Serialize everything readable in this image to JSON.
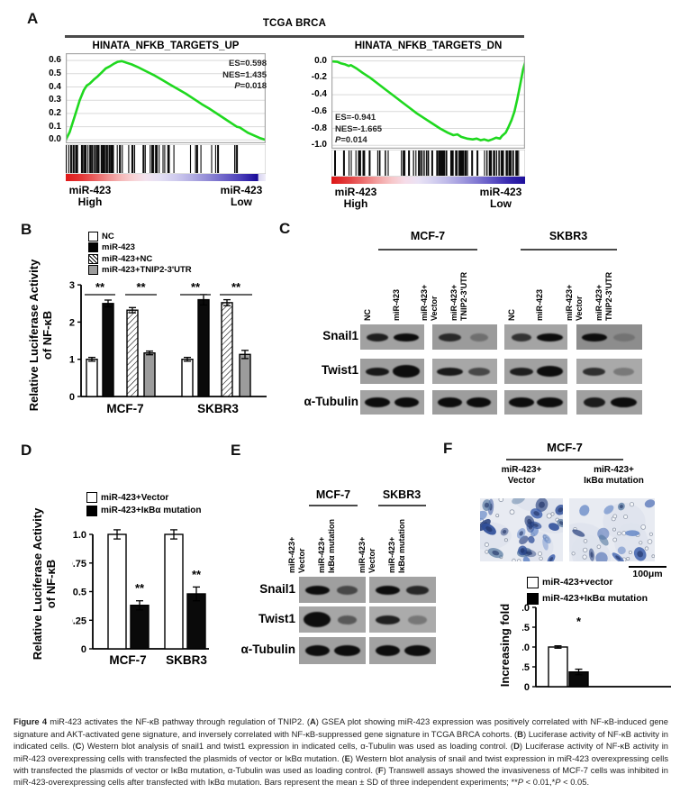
{
  "panels": {
    "a": {
      "label": "A",
      "title": "TCGA BRCA"
    },
    "b": {
      "label": "B"
    },
    "c": {
      "label": "C",
      "cell_lines": [
        "MCF-7",
        "SKBR3"
      ],
      "lane_labels": [
        [
          "NC"
        ],
        [
          "miR-423"
        ],
        [
          "miR-423+",
          "Vector"
        ],
        [
          "miR-423+",
          "TNIP2-3'UTR"
        ]
      ],
      "rows": [
        "Snail1",
        "Twist1",
        "α-Tubulin"
      ],
      "bands": [
        [
          [
            [
              0.8,
              0.88
            ],
            [
              0.95,
              1
            ]
          ],
          [
            [
              0.82,
              0.8
            ],
            [
              0.65,
              0.3
            ]
          ],
          [
            [
              0.72,
              0.75
            ],
            [
              0.95,
              1
            ]
          ],
          [
            [
              0.95,
              1
            ],
            [
              0.8,
              0.2
            ]
          ]
        ],
        [
          [
            [
              0.85,
              0.92
            ],
            [
              1,
              1,
              1.5
            ]
          ],
          [
            [
              0.95,
              0.92
            ],
            [
              0.8,
              0.62
            ]
          ],
          [
            [
              0.85,
              0.88
            ],
            [
              0.95,
              1,
              1.3
            ]
          ],
          [
            [
              0.82,
              0.78
            ],
            [
              0.78,
              0.3
            ]
          ]
        ],
        [
          [
            [
              0.95,
              1
            ],
            [
              0.9,
              1
            ]
          ],
          [
            [
              0.9,
              1
            ],
            [
              0.9,
              1
            ]
          ],
          [
            [
              0.95,
              1
            ],
            [
              0.95,
              1
            ]
          ],
          [
            [
              0.8,
              0.9
            ],
            [
              0.95,
              1
            ]
          ]
        ]
      ],
      "bg": [
        [
          "#a1a1a1",
          "#9b9b9b",
          "#a4a4a4",
          "#8d8d8d"
        ],
        [
          "#9e9e9e",
          "#a7a7a7",
          "#a1a1a1",
          "#a9a9a9"
        ],
        [
          "#a3a3a3",
          "#9d9d9d",
          "#a1a1a1",
          "#a0a0a0"
        ]
      ]
    },
    "d": {
      "label": "D"
    },
    "e": {
      "label": "E",
      "cell_lines": [
        "MCF-7",
        "SKBR3"
      ],
      "lane_labels": [
        [
          "miR-423+",
          "Vector"
        ],
        [
          "miR-423+",
          "IκBα mutation"
        ]
      ],
      "rows": [
        "Snail1",
        "Twist1",
        "α-Tubulin"
      ],
      "bands": [
        [
          [
            [
              0.9,
              1
            ],
            [
              0.78,
              0.6
            ]
          ],
          [
            [
              0.9,
              1
            ],
            [
              0.85,
              0.82
            ]
          ]
        ],
        [
          [
            [
              1,
              1,
              1.7
            ],
            [
              0.72,
              0.5
            ]
          ],
          [
            [
              0.9,
              0.88
            ],
            [
              0.72,
              0.32
            ]
          ]
        ],
        [
          [
            [
              0.9,
              1
            ],
            [
              0.95,
              1
            ]
          ],
          [
            [
              0.9,
              1
            ],
            [
              0.95,
              1
            ]
          ]
        ]
      ],
      "bg": [
        [
          "#9f9f9f",
          "#a3a3a3"
        ],
        [
          "#a6a6a6",
          "#ababab"
        ],
        [
          "#a0a0a0",
          "#a2a2a2"
        ]
      ]
    },
    "f": {
      "label": "F",
      "title": "MCF-7",
      "col_labels": [
        [
          "miR-423+",
          "Vector"
        ],
        [
          "miR-423+",
          "IκBα mutation"
        ]
      ],
      "scale_bar": "100μm",
      "cells": {
        "counts": [
          27,
          13
        ],
        "pores": [
          18,
          24
        ]
      }
    }
  },
  "chart_data": [
    {
      "id": "gsea_up",
      "type": "line",
      "title": "HINATA_NFKB_TARGETS_UP",
      "stats": [
        "ES=0.598",
        "NES=1.435",
        "P=0.018"
      ],
      "ytick_labels": [
        "0.6",
        "0.5",
        "0.4",
        "0.3",
        "0.2",
        "0.1",
        "0.0"
      ],
      "ytick_vals": [
        0.6,
        0.5,
        0.4,
        0.3,
        0.2,
        0.1,
        0.0
      ],
      "line_color": "#1fd81f",
      "corner_labels": {
        "left": [
          "miR-423",
          "High"
        ],
        "right": [
          "miR-423",
          "Low"
        ]
      },
      "curve": [
        [
          0,
          0
        ],
        [
          0.02,
          0.06
        ],
        [
          0.045,
          0.18
        ],
        [
          0.07,
          0.3
        ],
        [
          0.09,
          0.375
        ],
        [
          0.105,
          0.41
        ],
        [
          0.12,
          0.425
        ],
        [
          0.14,
          0.455
        ],
        [
          0.16,
          0.48
        ],
        [
          0.18,
          0.51
        ],
        [
          0.2,
          0.54
        ],
        [
          0.22,
          0.555
        ],
        [
          0.24,
          0.575
        ],
        [
          0.26,
          0.59
        ],
        [
          0.28,
          0.595
        ],
        [
          0.3,
          0.585
        ],
        [
          0.33,
          0.57
        ],
        [
          0.36,
          0.55
        ],
        [
          0.4,
          0.52
        ],
        [
          0.44,
          0.49
        ],
        [
          0.48,
          0.455
        ],
        [
          0.52,
          0.42
        ],
        [
          0.56,
          0.385
        ],
        [
          0.6,
          0.35
        ],
        [
          0.64,
          0.31
        ],
        [
          0.68,
          0.27
        ],
        [
          0.72,
          0.235
        ],
        [
          0.76,
          0.195
        ],
        [
          0.8,
          0.155
        ],
        [
          0.83,
          0.125
        ],
        [
          0.855,
          0.1
        ],
        [
          0.87,
          0.095
        ],
        [
          0.89,
          0.075
        ],
        [
          0.91,
          0.055
        ],
        [
          0.94,
          0.035
        ],
        [
          0.97,
          0.015
        ],
        [
          1,
          0
        ]
      ],
      "barcode_segments": [
        {
          "a": 0,
          "b": 0.32,
          "n": 55
        },
        {
          "a": 0.32,
          "b": 0.5,
          "n": 14
        },
        {
          "a": 0.5,
          "b": 0.75,
          "n": 9
        },
        {
          "a": 0.75,
          "b": 0.98,
          "n": 5
        }
      ],
      "gradient": [
        "#e01818 0%",
        "#e43838 8%",
        "#ea6464 15%",
        "#f09494 22%",
        "#f5baba 28%",
        "#f8d4d6 34%",
        "#f3e3ef 40%",
        "#e4e0f4 47%",
        "#cfcbee 55%",
        "#b3aee3 63%",
        "#928bd6 71%",
        "#6f65c9 79%",
        "#4d41ba 87%",
        "#2b1da6 93%",
        "#170a94 96%",
        "#d9d5f1 96.5%",
        "#efedf9 100%"
      ]
    },
    {
      "id": "gsea_dn",
      "type": "line",
      "title": "HINATA_NFKB_TARGETS_DN",
      "stats": [
        "ES=-0.941",
        "NES=-1.665",
        "P=0.014"
      ],
      "ytick_labels": [
        "0.0",
        "-0.2",
        "-0.4",
        "-0.6",
        "-0.8",
        "-1.0"
      ],
      "ytick_vals": [
        0.0,
        -0.2,
        -0.4,
        -0.6,
        -0.8,
        -1.0
      ],
      "line_color": "#1fd81f",
      "corner_labels": {
        "left": [
          "miR-423",
          "High"
        ],
        "right": [
          "miR-423",
          "Low"
        ]
      },
      "curve": [
        [
          0,
          -0.005
        ],
        [
          0.03,
          -0.01
        ],
        [
          0.05,
          -0.03
        ],
        [
          0.07,
          -0.04
        ],
        [
          0.09,
          -0.06
        ],
        [
          0.1,
          -0.05
        ],
        [
          0.13,
          -0.09
        ],
        [
          0.16,
          -0.14
        ],
        [
          0.2,
          -0.2
        ],
        [
          0.24,
          -0.27
        ],
        [
          0.28,
          -0.34
        ],
        [
          0.32,
          -0.41
        ],
        [
          0.36,
          -0.48
        ],
        [
          0.4,
          -0.55
        ],
        [
          0.44,
          -0.62
        ],
        [
          0.48,
          -0.68
        ],
        [
          0.52,
          -0.74
        ],
        [
          0.56,
          -0.8
        ],
        [
          0.6,
          -0.85
        ],
        [
          0.63,
          -0.88
        ],
        [
          0.65,
          -0.87
        ],
        [
          0.67,
          -0.9
        ],
        [
          0.7,
          -0.92
        ],
        [
          0.73,
          -0.93
        ],
        [
          0.75,
          -0.92
        ],
        [
          0.77,
          -0.94
        ],
        [
          0.79,
          -0.93
        ],
        [
          0.81,
          -0.945
        ],
        [
          0.83,
          -0.93
        ],
        [
          0.85,
          -0.91
        ],
        [
          0.87,
          -0.92
        ],
        [
          0.88,
          -0.89
        ],
        [
          0.9,
          -0.85
        ],
        [
          0.915,
          -0.78
        ],
        [
          0.93,
          -0.7
        ],
        [
          0.945,
          -0.6
        ],
        [
          0.96,
          -0.45
        ],
        [
          0.975,
          -0.28
        ],
        [
          0.99,
          -0.1
        ],
        [
          1,
          -0.02
        ]
      ],
      "barcode_segments": [
        {
          "a": 0,
          "b": 0.2,
          "n": 12
        },
        {
          "a": 0.2,
          "b": 0.45,
          "n": 14
        },
        {
          "a": 0.45,
          "b": 0.62,
          "n": 25
        },
        {
          "a": 0.62,
          "b": 0.99,
          "n": 45
        }
      ],
      "gradient": [
        "#dd1515 0%",
        "#e34040 9%",
        "#ec7272 17%",
        "#f2a2a2 24%",
        "#f7c6c8 31%",
        "#f6dce8 38%",
        "#e9e2f5 45%",
        "#d6d2f0 52%",
        "#bdb8e8 60%",
        "#9f98dd 68%",
        "#7d74d0 76%",
        "#5a4ec2 84%",
        "#3527ad 92%",
        "#1d0f9c 100%"
      ]
    },
    {
      "id": "bar_b",
      "type": "bar",
      "ylabel_lines": [
        "Relative Luciferase Activity",
        "of NF-κB"
      ],
      "categories": [
        "MCF-7",
        "SKBR3"
      ],
      "series": [
        {
          "name": "NC",
          "style": "white",
          "values": [
            1.0,
            1.0
          ],
          "errors": [
            0.05,
            0.05
          ]
        },
        {
          "name": "miR-423",
          "style": "black",
          "values": [
            2.5,
            2.6
          ],
          "errors": [
            0.09,
            0.14
          ]
        },
        {
          "name": "miR-423+NC",
          "style": "hatch",
          "values": [
            2.32,
            2.52
          ],
          "errors": [
            0.07,
            0.08
          ]
        },
        {
          "name": "miR-423+TNIP2-3'UTR",
          "style": "gray",
          "values": [
            1.17,
            1.13
          ],
          "errors": [
            0.05,
            0.11
          ]
        }
      ],
      "yticks": [
        0,
        1,
        2,
        3
      ],
      "ytick_labels": [
        "0",
        "1",
        "2",
        "3"
      ],
      "ylim": [
        0,
        3
      ],
      "significance": [
        {
          "cat": 0,
          "bars": [
            0,
            1
          ],
          "label": "**"
        },
        {
          "cat": 0,
          "bars": [
            2,
            3
          ],
          "label": "**"
        },
        {
          "cat": 1,
          "bars": [
            0,
            1
          ],
          "label": "**"
        },
        {
          "cat": 1,
          "bars": [
            2,
            3
          ],
          "label": "**"
        }
      ]
    },
    {
      "id": "bar_d",
      "type": "bar",
      "ylabel_lines": [
        "Relative Luciferase Activity",
        "of NF-κB"
      ],
      "categories": [
        "MCF-7",
        "SKBR3"
      ],
      "series": [
        {
          "name": "miR-423+Vector",
          "style": "white",
          "values": [
            1.0,
            1.0
          ],
          "errors": [
            0.04,
            0.04
          ]
        },
        {
          "name": "miR-423+IκBα mutation",
          "style": "black",
          "values": [
            0.38,
            0.48
          ],
          "errors": [
            0.04,
            0.06
          ]
        }
      ],
      "yticks": [
        0,
        0.25,
        0.5,
        0.75,
        1.0
      ],
      "ytick_labels": [
        "0",
        "0.25",
        "0.5",
        "0.75",
        "1.0"
      ],
      "ylim": [
        0,
        1.08
      ],
      "significance": [
        {
          "cat": 0,
          "bar": 1,
          "label": "**"
        },
        {
          "cat": 1,
          "bar": 1,
          "label": "**"
        }
      ]
    },
    {
      "id": "bar_f",
      "type": "bar",
      "ylabel_lines": [
        "Increasing fold"
      ],
      "categories": [
        ""
      ],
      "series": [
        {
          "name": "miR-423+vector",
          "style": "white",
          "values": [
            1.0
          ],
          "errors": [
            0.03
          ]
        },
        {
          "name": "miR-423+IκBα mutation",
          "style": "black",
          "values": [
            0.37
          ],
          "errors": [
            0.07
          ]
        }
      ],
      "yticks": [
        0,
        0.5,
        1.0,
        1.5,
        2.0
      ],
      "ytick_labels": [
        "0",
        "0.5",
        "1.0",
        "1.5",
        "2.0"
      ],
      "ylim": [
        0,
        2.0
      ],
      "significance": [
        {
          "cat": 0,
          "bar": 1,
          "label": "*"
        }
      ]
    }
  ],
  "caption": {
    "parts": [
      {
        "t": "Figure 4",
        "b": 1
      },
      {
        "t": " miR-423 activates the NF-κB pathway through regulation of TNIP2. (",
        "b": 0
      },
      {
        "t": "A",
        "b": 1
      },
      {
        "t": ") GSEA plot showing miR-423 expression was positively correlated with NF-κB-induced gene signature and AKT-activated gene signature, and inversely correlated with NF-κB-suppressed gene signature in TCGA BRCA cohorts. (",
        "b": 0
      },
      {
        "t": "B",
        "b": 1
      },
      {
        "t": ") Luciferase activity of NF-κB activity in indicated cells. (",
        "b": 0
      },
      {
        "t": "C",
        "b": 1
      },
      {
        "t": ") Western blot analysis of snail1 and twist1 expression in indicated cells, α-Tubulin was used as loading control. (",
        "b": 0
      },
      {
        "t": "D",
        "b": 1
      },
      {
        "t": ") Luciferase activity of NF-κB activity in miR-423 overexpressing cells with transfected the plasmids of vector or IκBα mutation. (",
        "b": 0
      },
      {
        "t": "E",
        "b": 1
      },
      {
        "t": ") Western blot analysis of snail and twist expression in miR-423 overexpressing cells with transfected the plasmids of vector or IκBα mutation, α-Tubulin was used as loading control. (",
        "b": 0
      },
      {
        "t": "F",
        "b": 1
      },
      {
        "t": ") Transwell assays showed the invasiveness of MCF-7 cells was inhibited in miR-423-overexpressing cells after transfected with IκBα mutation. Bars represent the mean ± SD of three independent experiments; **",
        "b": 0
      },
      {
        "t": "P",
        "b": 0,
        "i": 1
      },
      {
        "t": " < 0.01,*",
        "b": 0
      },
      {
        "t": "P",
        "b": 0,
        "i": 1
      },
      {
        "t": " < 0.05.",
        "b": 0
      }
    ]
  },
  "colors": {
    "curve_green": "#1fd81f",
    "grid": "#d9d9d9",
    "plot_border": "#a8a8a8",
    "rule_dark": "#4a4a4a",
    "gray_bar": "#9c9c9c"
  }
}
